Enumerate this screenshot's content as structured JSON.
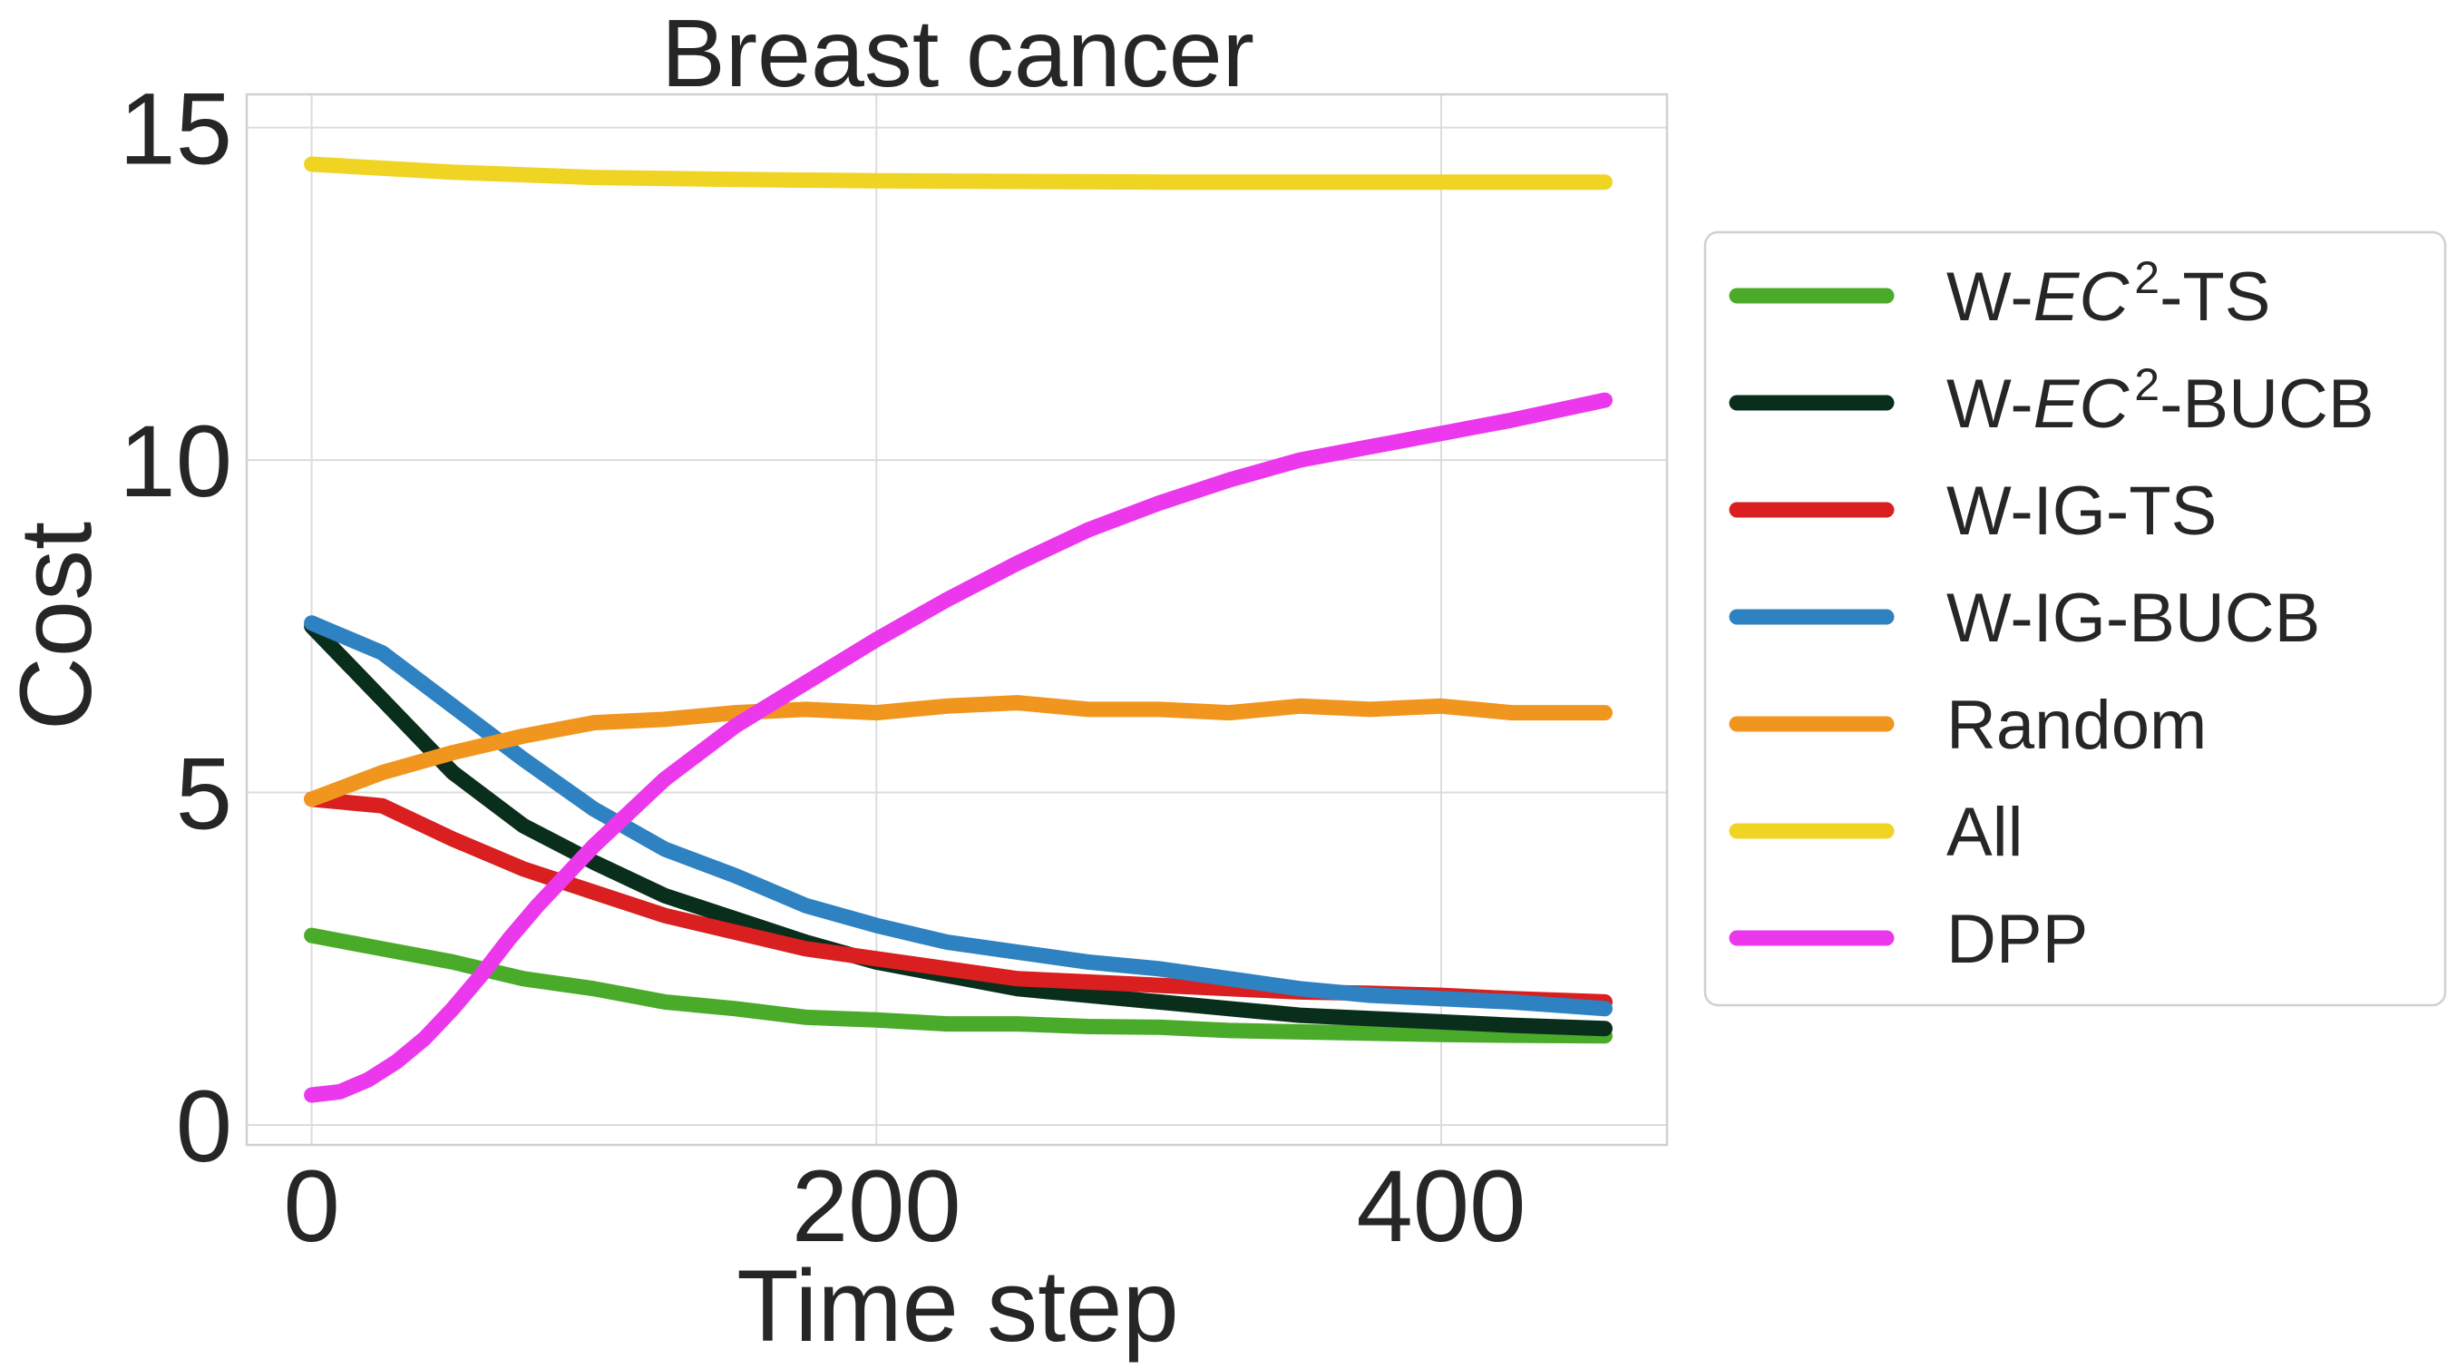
{
  "chart_data": {
    "type": "line",
    "title": "Breast cancer",
    "xlabel": "Time step",
    "ylabel": "Cost",
    "xlim": [
      -23,
      480
    ],
    "ylim": [
      -0.3,
      15.5
    ],
    "xticks": [
      0,
      200,
      400
    ],
    "xtick_labels": [
      "0",
      "200",
      "400"
    ],
    "yticks": [
      0,
      5,
      10,
      15
    ],
    "ytick_labels": [
      "0",
      "5",
      "10",
      "15"
    ],
    "grid": true,
    "legend_position": "outside-right",
    "series": [
      {
        "name": "W-EC2-TS",
        "label_parts": [
          "W-",
          "EC",
          "2",
          "-TS"
        ],
        "color": "#4aab2a",
        "x": [
          0,
          25,
          50,
          75,
          100,
          125,
          150,
          175,
          200,
          225,
          250,
          275,
          300,
          325,
          350,
          375,
          400,
          425,
          458
        ],
        "y": [
          2.85,
          2.65,
          2.45,
          2.2,
          2.05,
          1.85,
          1.75,
          1.62,
          1.58,
          1.52,
          1.52,
          1.48,
          1.47,
          1.42,
          1.4,
          1.38,
          1.36,
          1.35,
          1.34
        ]
      },
      {
        "name": "W-EC2-BUCB",
        "label_parts": [
          "W-",
          "EC",
          "2",
          "-BUCB"
        ],
        "color": "#0a2e1c",
        "x": [
          0,
          25,
          50,
          75,
          100,
          125,
          150,
          175,
          200,
          225,
          250,
          275,
          300,
          325,
          350,
          375,
          400,
          425,
          458
        ],
        "y": [
          7.5,
          6.4,
          5.3,
          4.5,
          3.95,
          3.45,
          3.1,
          2.75,
          2.45,
          2.25,
          2.05,
          1.95,
          1.85,
          1.75,
          1.65,
          1.6,
          1.55,
          1.5,
          1.45
        ]
      },
      {
        "name": "W-IG-TS",
        "label_parts": [
          "W-IG-TS"
        ],
        "color": "#d91f1f",
        "x": [
          0,
          25,
          50,
          75,
          100,
          125,
          150,
          175,
          200,
          225,
          250,
          275,
          300,
          325,
          350,
          375,
          400,
          425,
          458
        ],
        "y": [
          4.9,
          4.8,
          4.3,
          3.85,
          3.5,
          3.15,
          2.9,
          2.65,
          2.5,
          2.35,
          2.2,
          2.15,
          2.1,
          2.05,
          2.0,
          1.98,
          1.95,
          1.9,
          1.85
        ]
      },
      {
        "name": "W-IG-BUCB",
        "label_parts": [
          "W-IG-BUCB"
        ],
        "color": "#2e82c2",
        "x": [
          0,
          25,
          50,
          75,
          100,
          125,
          150,
          175,
          200,
          225,
          250,
          275,
          300,
          325,
          350,
          375,
          400,
          425,
          458
        ],
        "y": [
          7.55,
          7.1,
          6.3,
          5.5,
          4.75,
          4.15,
          3.75,
          3.3,
          3.0,
          2.75,
          2.6,
          2.45,
          2.35,
          2.2,
          2.05,
          1.95,
          1.9,
          1.85,
          1.75
        ]
      },
      {
        "name": "Random",
        "label_parts": [
          "Random"
        ],
        "color": "#f0961e",
        "x": [
          0,
          25,
          50,
          75,
          100,
          125,
          150,
          175,
          200,
          225,
          250,
          275,
          300,
          325,
          350,
          375,
          400,
          425,
          458
        ],
        "y": [
          4.9,
          5.3,
          5.6,
          5.85,
          6.05,
          6.1,
          6.2,
          6.25,
          6.2,
          6.3,
          6.35,
          6.25,
          6.25,
          6.2,
          6.3,
          6.25,
          6.3,
          6.2,
          6.2
        ]
      },
      {
        "name": "All",
        "label_parts": [
          "All"
        ],
        "color": "#efd424",
        "x": [
          0,
          50,
          100,
          150,
          200,
          250,
          300,
          350,
          400,
          458
        ],
        "y": [
          14.45,
          14.33,
          14.25,
          14.22,
          14.2,
          14.19,
          14.18,
          14.18,
          14.18,
          14.18
        ]
      },
      {
        "name": "DPP",
        "label_parts": [
          "DPP"
        ],
        "color": "#ec38ec",
        "x": [
          0,
          10,
          20,
          30,
          40,
          50,
          60,
          70,
          80,
          90,
          100,
          125,
          150,
          175,
          200,
          225,
          250,
          275,
          300,
          325,
          350,
          375,
          400,
          425,
          458
        ],
        "y": [
          0.45,
          0.5,
          0.68,
          0.95,
          1.3,
          1.75,
          2.25,
          2.8,
          3.3,
          3.75,
          4.2,
          5.2,
          6.0,
          6.65,
          7.3,
          7.9,
          8.45,
          8.95,
          9.35,
          9.7,
          10.0,
          10.2,
          10.4,
          10.6,
          10.9
        ]
      }
    ]
  }
}
